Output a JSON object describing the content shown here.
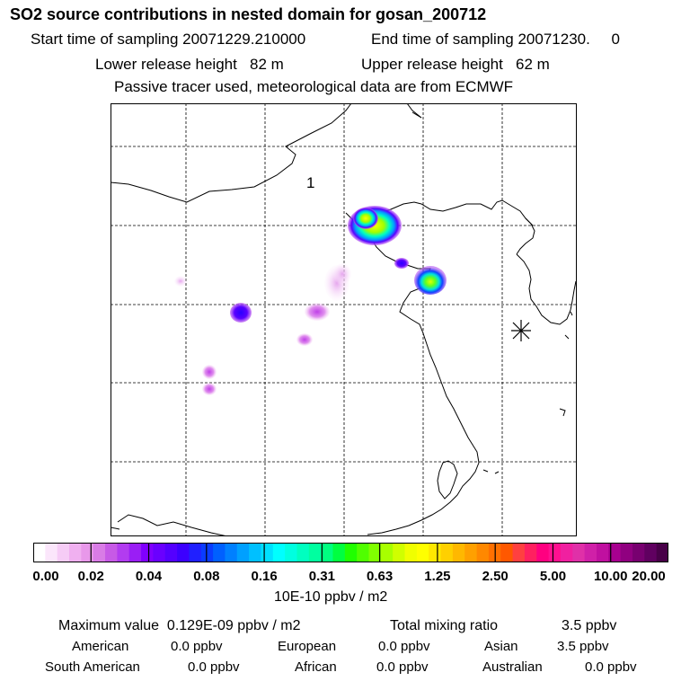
{
  "header": {
    "title": "SO2 source contributions in nested domain for gosan_200712",
    "start_time": "Start time of sampling 20071229.210000",
    "end_time": "End time of sampling 20071230.     0",
    "lower_release": "Lower release height   82 m",
    "upper_release": "Upper release height   62 m",
    "tracer_note": "Passive tracer used, meteorological data are from ECMWF"
  },
  "map": {
    "label_1": "1",
    "receptor_marker": "gosan-receptor-star-icon"
  },
  "colorbar": {
    "ticks": [
      "0.00",
      "0.02",
      "0.04",
      "0.08",
      "0.16",
      "0.31",
      "0.63",
      "1.25",
      "2.50",
      "5.00",
      "10.00",
      "20.00"
    ],
    "units": "10E-10 ppbv / m2",
    "colors": [
      "#ffffff",
      "#fbe6fb",
      "#f6ccf6",
      "#f0b0f0",
      "#e898ea",
      "#d97ce6",
      "#c75ae6",
      "#b23cf0",
      "#9a1ef5",
      "#8000ff",
      "#6a00ff",
      "#5400ff",
      "#3c00ff",
      "#2020ff",
      "#0a3cff",
      "#0060ff",
      "#0080ff",
      "#00a0ff",
      "#00c0ff",
      "#00e0ff",
      "#00ffff",
      "#00ffe0",
      "#00ffc0",
      "#00ffa0",
      "#00ff80",
      "#00ff40",
      "#20ff00",
      "#50ff00",
      "#80ff00",
      "#a8ff00",
      "#d0ff00",
      "#f0ff00",
      "#ffff00",
      "#ffe800",
      "#ffd000",
      "#ffb800",
      "#ffa000",
      "#ff8800",
      "#ff7000",
      "#ff5800",
      "#ff4040",
      "#ff2060",
      "#ff0080",
      "#ff1090",
      "#f020a0",
      "#e030a8",
      "#d020a8",
      "#c010a0",
      "#a80090",
      "#900080",
      "#780070",
      "#600060",
      "#480048"
    ]
  },
  "stats": {
    "max_label": "Maximum value  0.129E-09 ppbv / m2",
    "total_label": "Total mixing ratio",
    "total_value": "3.5 ppbv",
    "american_label": "American",
    "american_value": "0.0 ppbv",
    "european_label": "European",
    "european_value": "0.0 ppbv",
    "asian_label": "Asian",
    "asian_value": "3.5 ppbv",
    "south_american_label": "South American",
    "south_american_value": "0.0 ppbv",
    "african_label": "African",
    "african_value": "0.0 ppbv",
    "australian_label": "Australian",
    "australian_value": "0.0 ppbv"
  }
}
